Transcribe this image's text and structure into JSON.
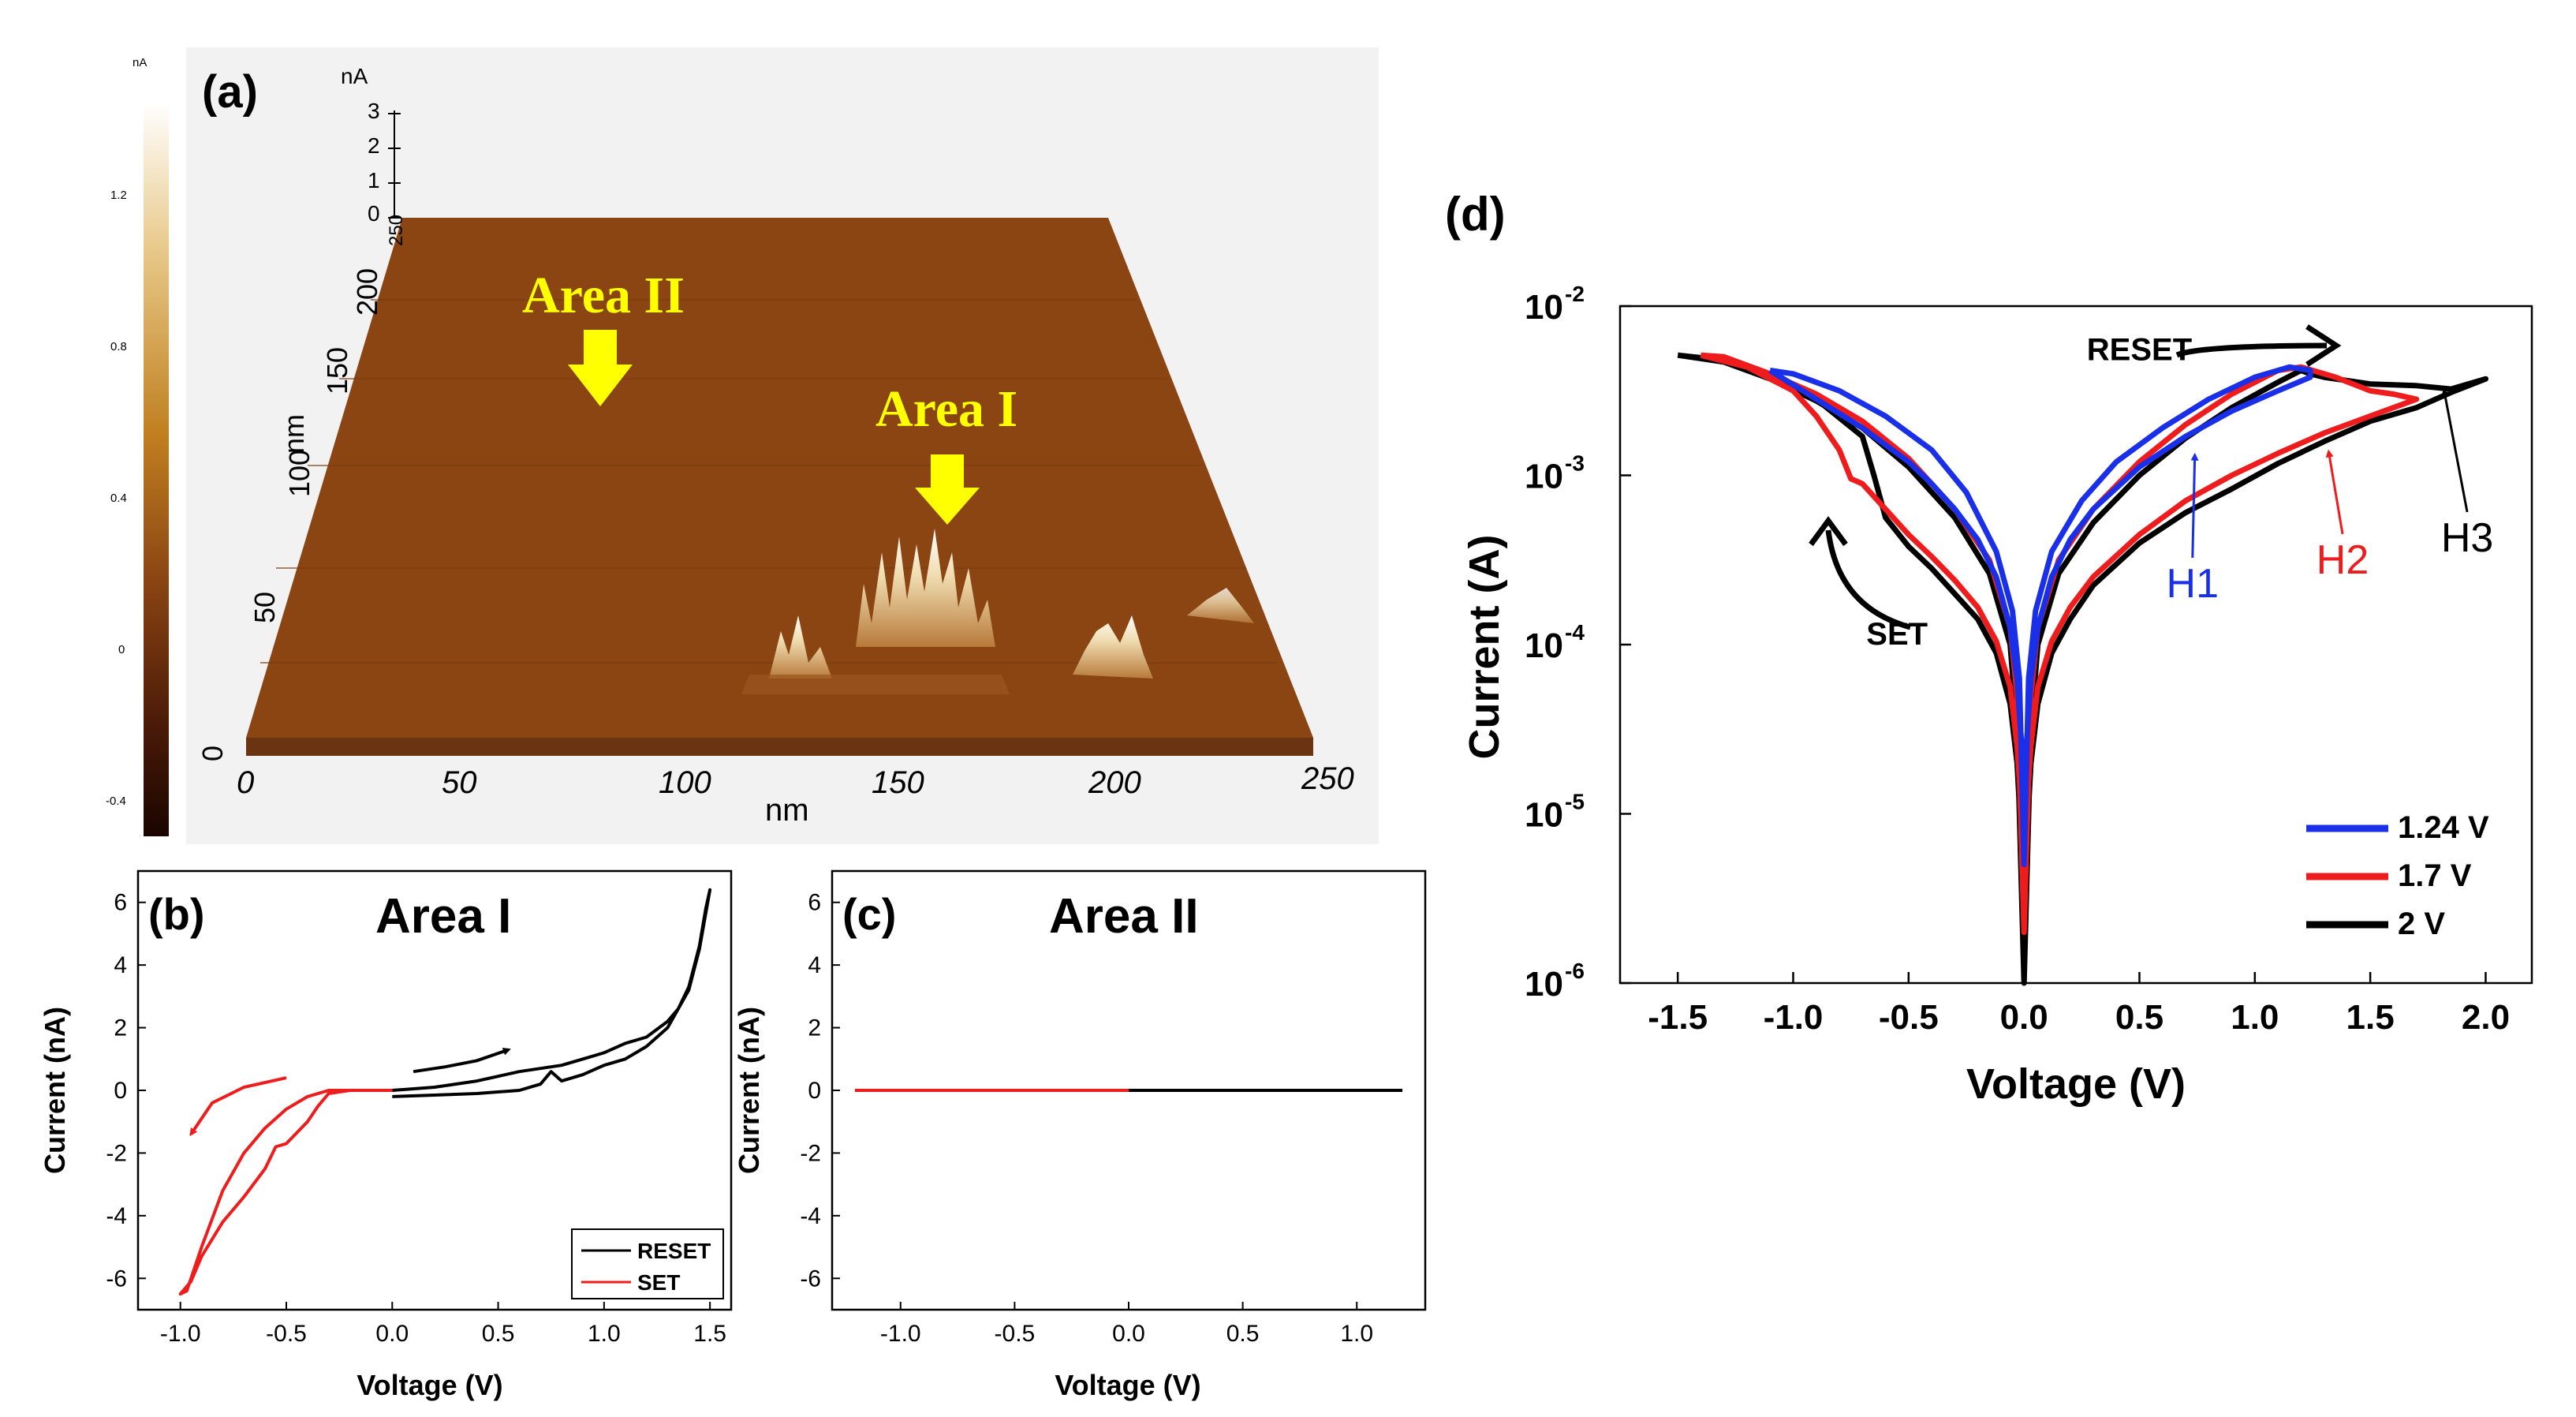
{
  "colors": {
    "blue": "#1a2fe8",
    "red": "#ee1c1c",
    "black": "#000000",
    "yellow": "#ffff00",
    "afm_surface": "#8b4513",
    "afm_bg": "#f2f2f2"
  },
  "panel_labels": {
    "a": "(a)",
    "b": "(b)",
    "c": "(c)",
    "d": "(d)"
  },
  "chart_data": [
    {
      "id": "a",
      "type": "surface3d",
      "title": "",
      "x_label": "nm",
      "y_label": "nm",
      "z_label": "nA",
      "x_ticks": [
        "0",
        "50",
        "100",
        "150",
        "200",
        "250"
      ],
      "y_ticks": [
        "0",
        "50",
        "100",
        "150",
        "200",
        "250"
      ],
      "z_ticks": [
        "0",
        "1",
        "2",
        "3"
      ],
      "colorbar_unit": "nA",
      "colorbar_ticks": [
        "1.2",
        "0.8",
        "0.4",
        "0",
        "-0.4"
      ],
      "annotations": [
        "Area II",
        "Area I"
      ]
    },
    {
      "id": "b",
      "type": "line",
      "title": "Area Ι",
      "xlabel": "Voltage (V)",
      "ylabel": "Current (nA)",
      "xlim": [
        -1.2,
        1.6
      ],
      "ylim": [
        -7,
        7
      ],
      "x_ticks": [
        -1.0,
        -0.5,
        0.0,
        0.5,
        1.0,
        1.5
      ],
      "x_tick_labels": [
        "-1.0",
        "-0.5",
        "0.0",
        "0.5",
        "1.0",
        "1.5"
      ],
      "y_ticks": [
        -6,
        -4,
        -2,
        0,
        2,
        4,
        6
      ],
      "y_tick_labels": [
        "-6",
        "-4",
        "-2",
        "0",
        "2",
        "4",
        "6"
      ],
      "legend": [
        "RESET",
        "SET"
      ],
      "series": [
        {
          "name": "RESET",
          "color": "#000000",
          "x": [
            0.0,
            0.2,
            0.4,
            0.6,
            0.7,
            0.75,
            0.8,
            0.9,
            1.0,
            1.1,
            1.2,
            1.3,
            1.4,
            1.45,
            1.5,
            1.48,
            1.45,
            1.4,
            1.35,
            1.3,
            1.2,
            1.1,
            1.0,
            0.9,
            0.8,
            0.6,
            0.4,
            0.2,
            0.0
          ],
          "y": [
            -0.2,
            -0.15,
            -0.1,
            0.0,
            0.2,
            0.6,
            0.3,
            0.5,
            0.8,
            1.0,
            1.4,
            2.0,
            3.2,
            4.5,
            6.4,
            5.8,
            4.6,
            3.3,
            2.6,
            2.2,
            1.7,
            1.5,
            1.2,
            1.0,
            0.8,
            0.6,
            0.3,
            0.1,
            0.0
          ]
        },
        {
          "name": "SET",
          "color": "#ee1c1c",
          "x": [
            0.0,
            -0.2,
            -0.3,
            -0.35,
            -0.4,
            -0.5,
            -0.55,
            -0.6,
            -0.7,
            -0.8,
            -0.9,
            -0.95,
            -1.0,
            -0.97,
            -0.9,
            -0.8,
            -0.7,
            -0.6,
            -0.5,
            -0.4,
            -0.3,
            -0.2,
            0.0
          ],
          "y": [
            0.0,
            0.0,
            -0.1,
            -0.5,
            -1.0,
            -1.7,
            -1.8,
            -2.5,
            -3.4,
            -4.2,
            -5.3,
            -6.1,
            -6.5,
            -6.4,
            -5.0,
            -3.2,
            -2.0,
            -1.2,
            -0.6,
            -0.2,
            0.0,
            0.0,
            0.0
          ]
        }
      ],
      "annotations": [
        {
          "kind": "arrow",
          "color": "#000000",
          "x": [
            0.1,
            0.25,
            0.4,
            0.55
          ],
          "y": [
            0.6,
            0.75,
            0.95,
            1.3
          ]
        },
        {
          "kind": "arrow",
          "color": "#ee1c1c",
          "x": [
            -0.5,
            -0.7,
            -0.85,
            -0.95
          ],
          "y": [
            0.4,
            0.1,
            -0.4,
            -1.4
          ]
        }
      ]
    },
    {
      "id": "c",
      "type": "line",
      "title": "Area ΙΙ",
      "xlabel": "Voltage (V)",
      "ylabel": "Current (nA)",
      "xlim": [
        -1.3,
        1.3
      ],
      "ylim": [
        -7,
        7
      ],
      "x_ticks": [
        -1.0,
        -0.5,
        0.0,
        0.5,
        1.0
      ],
      "x_tick_labels": [
        "-1.0",
        "-0.5",
        "0.0",
        "0.5",
        "1.0"
      ],
      "y_ticks": [
        -6,
        -4,
        -2,
        0,
        2,
        4,
        6
      ],
      "y_tick_labels": [
        "-6",
        "-4",
        "-2",
        "0",
        "2",
        "4",
        "6"
      ],
      "series": [
        {
          "name": "SET",
          "color": "#ee1c1c",
          "x": [
            -1.2,
            0.0
          ],
          "y": [
            0.0,
            0.0
          ]
        },
        {
          "name": "RESET",
          "color": "#000000",
          "x": [
            0.0,
            1.2
          ],
          "y": [
            0.0,
            0.0
          ]
        }
      ]
    },
    {
      "id": "d",
      "type": "line",
      "title": "",
      "xlabel": "Voltage (V)",
      "ylabel": "Current (A)",
      "xlim": [
        -1.75,
        2.2
      ],
      "ylim_log10": [
        -6,
        -2
      ],
      "x_ticks": [
        -1.5,
        -1.0,
        -0.5,
        0.0,
        0.5,
        1.0,
        1.5,
        2.0
      ],
      "x_tick_labels": [
        "-1.5",
        "-1.0",
        "-0.5",
        "0.0",
        "0.5",
        "1.0",
        "1.5",
        "2.0"
      ],
      "y_tick_bases": [
        "10",
        "10",
        "10",
        "10",
        "10"
      ],
      "y_tick_exponents": [
        "-2",
        "-3",
        "-4",
        "-5",
        "-6"
      ],
      "y_tick_values_log10": [
        -2,
        -3,
        -4,
        -5,
        -6
      ],
      "legend": [
        "1.24 V",
        "1.7 V",
        "2 V"
      ],
      "series": [
        {
          "name": "2 V",
          "color": "#000000",
          "x": [
            -1.5,
            -1.3,
            -1.1,
            -0.9,
            -0.7,
            -0.65,
            -0.6,
            -0.5,
            -0.4,
            -0.3,
            -0.2,
            -0.12,
            -0.06,
            -0.03,
            -0.01,
            0.0,
            0.01,
            0.03,
            0.06,
            0.12,
            0.2,
            0.3,
            0.5,
            0.7,
            0.9,
            1.1,
            1.3,
            1.5,
            1.7,
            1.85,
            2.0,
            1.85,
            1.7,
            1.5,
            1.3,
            1.24,
            1.2,
            1.1,
            0.9,
            0.7,
            0.5,
            0.3,
            0.15,
            0.06,
            0.03,
            0.0,
            -0.03,
            -0.06,
            -0.15,
            -0.3,
            -0.5,
            -0.7,
            -0.9,
            -1.1,
            -1.3,
            -1.5
          ],
          "log10y": [
            -2.29,
            -2.32,
            -2.4,
            -2.55,
            -2.77,
            -3.0,
            -3.25,
            -3.42,
            -3.55,
            -3.7,
            -3.85,
            -4.05,
            -4.35,
            -4.7,
            -5.2,
            -6.0,
            -5.2,
            -4.7,
            -4.35,
            -4.05,
            -3.85,
            -3.65,
            -3.4,
            -3.22,
            -3.08,
            -2.93,
            -2.8,
            -2.68,
            -2.6,
            -2.51,
            -2.43,
            -2.49,
            -2.47,
            -2.46,
            -2.42,
            -2.4,
            -2.38,
            -2.45,
            -2.6,
            -2.78,
            -3.0,
            -3.28,
            -3.58,
            -4.0,
            -4.5,
            -6.0,
            -4.5,
            -4.0,
            -3.58,
            -3.25,
            -2.95,
            -2.72,
            -2.56,
            -2.43,
            -2.33,
            -2.29
          ]
        },
        {
          "name": "1.7 V",
          "color": "#ee1c1c",
          "x": [
            -1.4,
            -1.2,
            -1.0,
            -0.9,
            -0.8,
            -0.75,
            -0.7,
            -0.6,
            -0.5,
            -0.4,
            -0.3,
            -0.2,
            -0.12,
            -0.06,
            -0.03,
            -0.01,
            0.0,
            0.01,
            0.03,
            0.06,
            0.12,
            0.2,
            0.3,
            0.5,
            0.7,
            0.9,
            1.1,
            1.3,
            1.5,
            1.6,
            1.7,
            1.6,
            1.5,
            1.35,
            1.2,
            1.1,
            0.9,
            0.7,
            0.5,
            0.3,
            0.15,
            0.06,
            0.03,
            0.0,
            -0.03,
            -0.06,
            -0.15,
            -0.3,
            -0.5,
            -0.7,
            -0.9,
            -1.1,
            -1.3,
            -1.4
          ],
          "log10y": [
            -2.29,
            -2.36,
            -2.5,
            -2.65,
            -2.85,
            -3.02,
            -3.05,
            -3.2,
            -3.35,
            -3.48,
            -3.62,
            -3.78,
            -3.98,
            -4.25,
            -4.6,
            -5.0,
            -5.7,
            -5.0,
            -4.6,
            -4.25,
            -3.98,
            -3.78,
            -3.6,
            -3.35,
            -3.15,
            -3.0,
            -2.87,
            -2.75,
            -2.65,
            -2.6,
            -2.55,
            -2.52,
            -2.5,
            -2.42,
            -2.36,
            -2.38,
            -2.52,
            -2.7,
            -2.92,
            -3.2,
            -3.5,
            -3.9,
            -4.3,
            -5.7,
            -4.3,
            -3.9,
            -3.5,
            -3.2,
            -2.9,
            -2.68,
            -2.52,
            -2.4,
            -2.3,
            -2.29
          ]
        },
        {
          "name": "1.24 V",
          "color": "#1a2fe8",
          "x": [
            -1.1,
            -0.9,
            -0.7,
            -0.5,
            -0.4,
            -0.3,
            -0.2,
            -0.12,
            -0.06,
            -0.03,
            -0.01,
            0.0,
            0.01,
            0.03,
            0.06,
            0.12,
            0.2,
            0.3,
            0.5,
            0.7,
            0.9,
            1.1,
            1.24,
            1.24,
            1.15,
            1.0,
            0.8,
            0.6,
            0.4,
            0.25,
            0.12,
            0.05,
            0.02,
            0.0,
            -0.02,
            -0.05,
            -0.12,
            -0.25,
            -0.4,
            -0.6,
            -0.8,
            -1.0,
            -1.1
          ],
          "log10y": [
            -2.38,
            -2.55,
            -2.72,
            -2.92,
            -3.05,
            -3.2,
            -3.38,
            -3.6,
            -3.9,
            -4.2,
            -4.6,
            -5.3,
            -4.6,
            -4.2,
            -3.9,
            -3.6,
            -3.38,
            -3.2,
            -2.95,
            -2.77,
            -2.62,
            -2.5,
            -2.42,
            -2.38,
            -2.36,
            -2.42,
            -2.55,
            -2.72,
            -2.92,
            -3.15,
            -3.45,
            -3.8,
            -4.2,
            -5.3,
            -4.2,
            -3.8,
            -3.45,
            -3.1,
            -2.85,
            -2.65,
            -2.5,
            -2.4,
            -2.38
          ]
        }
      ],
      "annotations": [
        {
          "text": "RESET",
          "color": "#000000",
          "x": 0.5,
          "log10y": -2.32
        },
        {
          "text": "SET",
          "color": "#000000",
          "x": -0.55,
          "log10y": -4.0
        },
        {
          "text": "H1",
          "color": "#1a2fe8",
          "x": 0.73,
          "log10y": -3.72,
          "arrow_to": [
            0.74,
            -2.88
          ]
        },
        {
          "text": "H2",
          "color": "#ee1c1c",
          "x": 1.38,
          "log10y": -3.58,
          "arrow_to": [
            1.32,
            -2.86
          ]
        },
        {
          "text": "H3",
          "color": "#000000",
          "x": 1.92,
          "log10y": -3.45,
          "arrow_to": [
            1.82,
            -2.5
          ]
        }
      ]
    }
  ]
}
